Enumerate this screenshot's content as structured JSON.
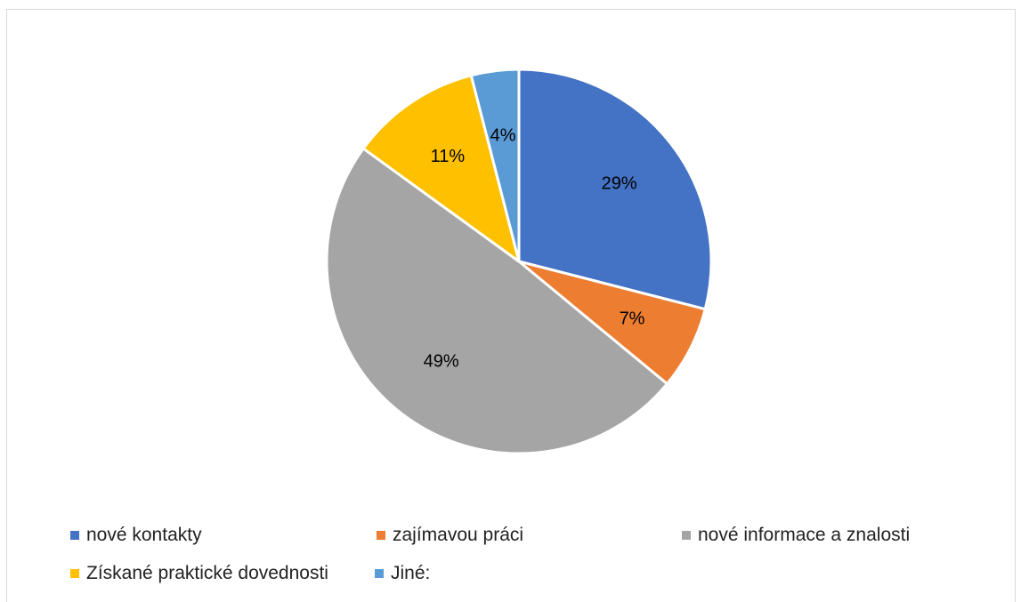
{
  "chart_data": {
    "type": "pie",
    "title": "",
    "legend_position": "bottom",
    "categories": [
      "nové kontakty",
      "zajímavou práci",
      "nové informace a znalosti",
      "Získané praktické dovednosti",
      "Jiné:"
    ],
    "values": [
      29,
      7,
      49,
      11,
      4
    ],
    "labels": [
      "29%",
      "7%",
      "49%",
      "11%",
      "4%"
    ],
    "colors": [
      "#4472C4",
      "#ED7D31",
      "#A5A5A5",
      "#FFC000",
      "#5B9BD5"
    ]
  }
}
